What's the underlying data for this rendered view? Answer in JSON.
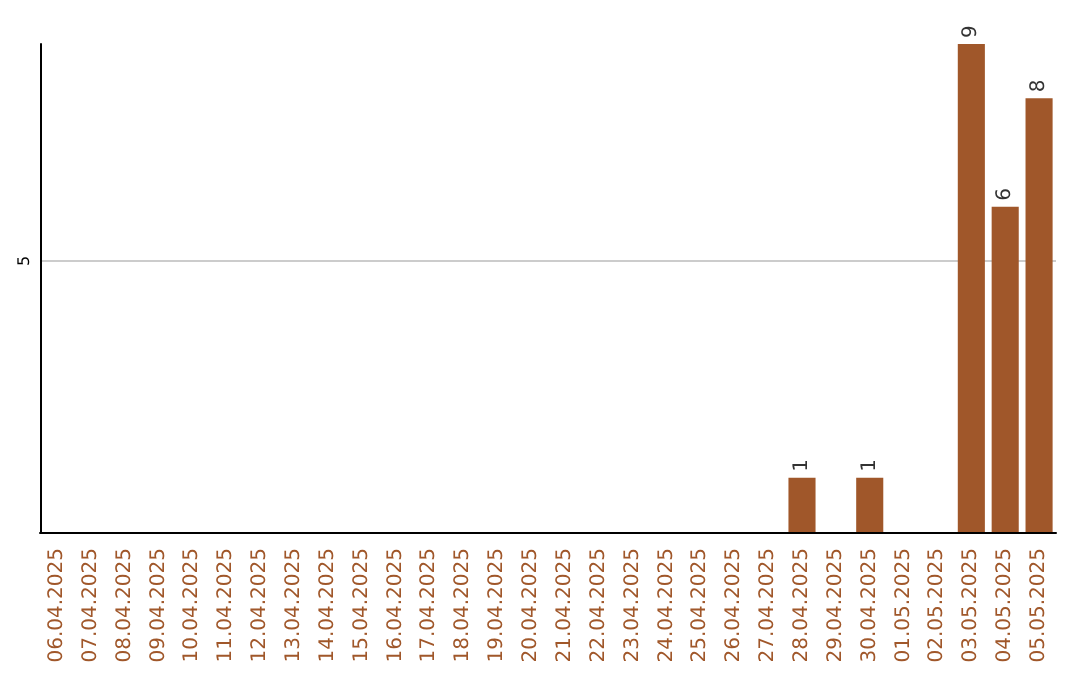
{
  "chart_data": {
    "type": "bar",
    "categories": [
      "06.04.2025",
      "07.04.2025",
      "08.04.2025",
      "09.04.2025",
      "10.04.2025",
      "11.04.2025",
      "12.04.2025",
      "13.04.2025",
      "14.04.2025",
      "15.04.2025",
      "16.04.2025",
      "17.04.2025",
      "18.04.2025",
      "19.04.2025",
      "20.04.2025",
      "21.04.2025",
      "22.04.2025",
      "23.04.2025",
      "24.04.2025",
      "25.04.2025",
      "26.04.2025",
      "27.04.2025",
      "28.04.2025",
      "29.04.2025",
      "30.04.2025",
      "01.05.2025",
      "02.05.2025",
      "03.05.2025",
      "04.05.2025",
      "05.05.2025"
    ],
    "values": [
      null,
      null,
      null,
      null,
      null,
      null,
      null,
      null,
      null,
      null,
      null,
      null,
      null,
      null,
      null,
      null,
      null,
      null,
      null,
      null,
      null,
      null,
      1,
      null,
      1,
      null,
      null,
      9,
      6,
      8
    ],
    "data_labels": true,
    "color": "#a0572a",
    "ylim": [
      0,
      9
    ],
    "yticks": [
      5
    ],
    "grid": "y"
  }
}
